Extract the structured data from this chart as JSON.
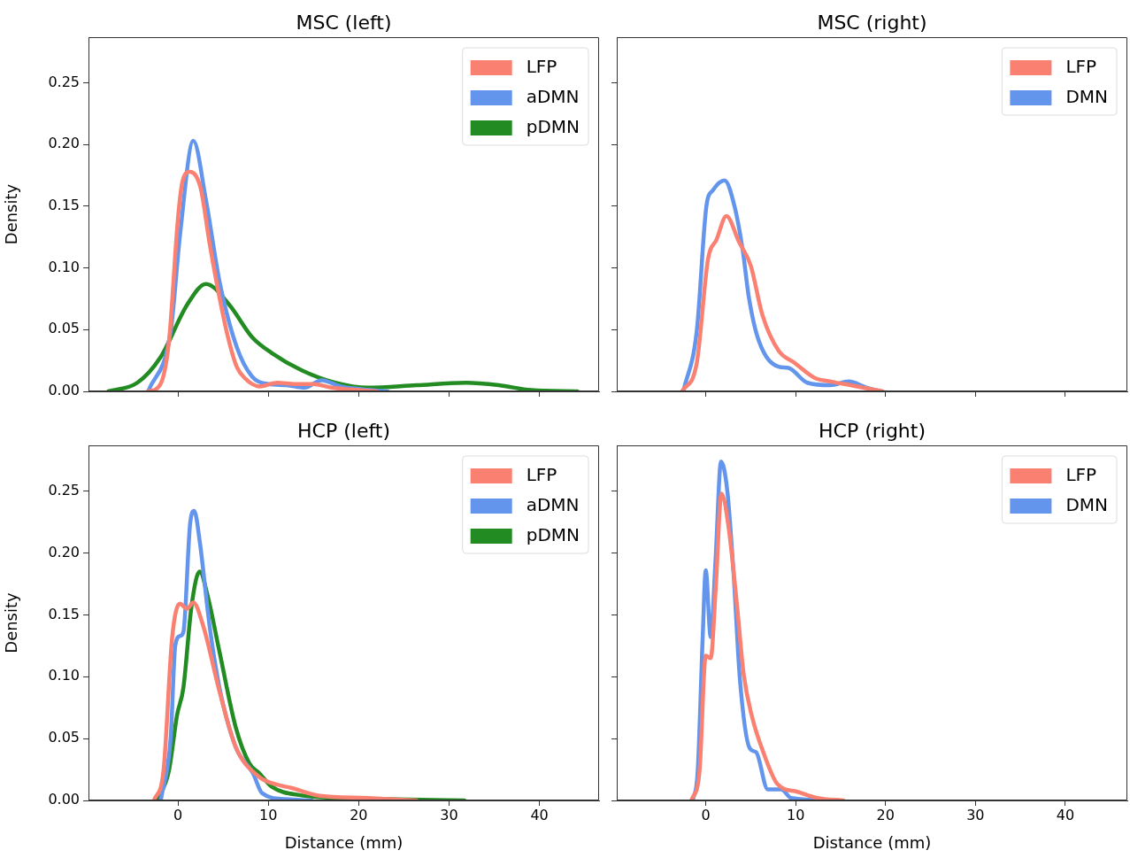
{
  "chart_data": [
    {
      "type": "line",
      "title": "MSC (left)",
      "ylabel": "Density",
      "xlim": [
        -9.9,
        46.6
      ],
      "ylim": [
        0,
        0.287
      ],
      "xticks": [
        {
          "value": 0,
          "label": null
        },
        {
          "value": 10,
          "label": null
        },
        {
          "value": 20,
          "label": null
        },
        {
          "value": 30,
          "label": null
        },
        {
          "value": 40,
          "label": null
        }
      ],
      "yticks": [
        {
          "value": 0,
          "label": "0.00"
        },
        {
          "value": 0.05,
          "label": "0.05"
        },
        {
          "value": 0.1,
          "label": "0.10"
        },
        {
          "value": 0.15,
          "label": "0.15"
        },
        {
          "value": 0.2,
          "label": "0.20"
        },
        {
          "value": 0.25,
          "label": "0.25"
        }
      ],
      "tick_labels": "y",
      "legend": "top right",
      "grid": false,
      "marker": "none",
      "line_style": "solid",
      "series": [
        {
          "name": "LFP",
          "color": "#fa8072",
          "x": [
            -3.3,
            -2,
            -1,
            0,
            0.5,
            1.3,
            2.5,
            3.5,
            4.6,
            5.5,
            6.5,
            7.5,
            8.2,
            9,
            11,
            13,
            15,
            17,
            20,
            22
          ],
          "values": [
            0,
            0.005,
            0.04,
            0.14,
            0.17,
            0.178,
            0.165,
            0.12,
            0.076,
            0.045,
            0.02,
            0.01,
            0.006,
            0.004,
            0.007,
            0.006,
            0.006,
            0.003,
            0.001,
            0
          ]
        },
        {
          "name": "aDMN",
          "color": "#6495ed",
          "x": [
            -3.3,
            -0.8,
            0.26,
            1.7,
            3.1,
            4.6,
            6.5,
            8.2,
            10,
            12,
            14,
            15.9,
            18,
            20,
            23.2
          ],
          "values": [
            0,
            0.049,
            0.129,
            0.203,
            0.155,
            0.089,
            0.036,
            0.012,
            0.006,
            0.005,
            0.003,
            0.009,
            0.004,
            0.002,
            0
          ]
        },
        {
          "name": "pDMN",
          "color": "#228b22",
          "x": [
            -7.7,
            -4.5,
            -1.9,
            1,
            3.1,
            5.7,
            8.2,
            10.4,
            13.7,
            17.4,
            21,
            26.4,
            31.9,
            35.5,
            39.1,
            44.2
          ],
          "values": [
            0,
            0.007,
            0.028,
            0.07,
            0.087,
            0.07,
            0.044,
            0.031,
            0.017,
            0.007,
            0.003,
            0.005,
            0.007,
            0.005,
            0.001,
            0
          ]
        }
      ]
    },
    {
      "type": "line",
      "title": "MSC (right)",
      "xlim": [
        -9.9,
        46.9
      ],
      "ylim": [
        0,
        0.287
      ],
      "xticks": [
        {
          "value": 0,
          "label": null
        },
        {
          "value": 10,
          "label": null
        },
        {
          "value": 20,
          "label": null
        },
        {
          "value": 30,
          "label": null
        },
        {
          "value": 40,
          "label": null
        }
      ],
      "yticks": [
        {
          "value": 0,
          "label": null
        },
        {
          "value": 0.05,
          "label": null
        },
        {
          "value": 0.1,
          "label": null
        },
        {
          "value": 0.15,
          "label": null
        },
        {
          "value": 0.2,
          "label": null
        },
        {
          "value": 0.25,
          "label": null
        }
      ],
      "tick_labels": false,
      "legend": "top right",
      "grid": false,
      "marker": "none",
      "line_style": "solid",
      "series": [
        {
          "name": "LFP",
          "color": "#fa8072",
          "x": [
            -2.65,
            -1,
            0.25,
            1.2,
            2.3,
            3.7,
            5,
            6.3,
            8.1,
            9.9,
            12.1,
            13.9,
            16.1,
            19.7
          ],
          "values": [
            0,
            0.023,
            0.107,
            0.123,
            0.142,
            0.121,
            0.102,
            0.062,
            0.033,
            0.023,
            0.011,
            0.008,
            0.005,
            0
          ]
        },
        {
          "name": "DMN",
          "color": "#6495ed",
          "x": [
            -2.5,
            -1,
            0.07,
            0.8,
            2.1,
            3.2,
            4.1,
            4.8,
            5.9,
            8.1,
            9.2,
            11.3,
            13.9,
            15.9,
            17.9,
            19.5
          ],
          "values": [
            0,
            0.049,
            0.15,
            0.163,
            0.171,
            0.15,
            0.115,
            0.076,
            0.041,
            0.02,
            0.019,
            0.007,
            0.005,
            0.008,
            0.003,
            0
          ]
        }
      ]
    },
    {
      "type": "line",
      "title": "HCP (left)",
      "xlabel": "Distance (mm)",
      "ylabel": "Density",
      "xlim": [
        -9.9,
        46.6
      ],
      "ylim": [
        0,
        0.287
      ],
      "xticks": [
        0,
        10,
        20,
        30,
        40
      ],
      "yticks": [
        {
          "value": 0,
          "label": "0.00"
        },
        {
          "value": 0.05,
          "label": "0.05"
        },
        {
          "value": 0.1,
          "label": "0.10"
        },
        {
          "value": 0.15,
          "label": "0.15"
        },
        {
          "value": 0.2,
          "label": "0.20"
        },
        {
          "value": 0.25,
          "label": "0.25"
        }
      ],
      "legend": "top right",
      "grid": false,
      "marker": "none",
      "line_style": "solid",
      "series": [
        {
          "name": "LFP",
          "color": "#fa8072",
          "x": [
            -2.65,
            -1.6,
            -0.65,
            0.2,
            1,
            1.7,
            2.8,
            4.6,
            6.4,
            9,
            10.4,
            12.6,
            15.5,
            21,
            26.4
          ],
          "values": [
            0,
            0.024,
            0.131,
            0.159,
            0.155,
            0.16,
            0.141,
            0.088,
            0.043,
            0.019,
            0.014,
            0.01,
            0.004,
            0.002,
            0
          ]
        },
        {
          "name": "aDMN",
          "color": "#6495ed",
          "x": [
            -1.9,
            -0.8,
            -0.3,
            0.25,
            0.6,
            1.35,
            1.8,
            2.4,
            3.5,
            4.6,
            6.4,
            8.3,
            9.3,
            11.9,
            14.8
          ],
          "values": [
            0,
            0.051,
            0.125,
            0.133,
            0.136,
            0.224,
            0.234,
            0.21,
            0.141,
            0.091,
            0.043,
            0.022,
            0.006,
            0.001,
            0
          ]
        },
        {
          "name": "pDMN",
          "color": "#228b22",
          "x": [
            -2.3,
            -1,
            -0.1,
            0.6,
            1.5,
            2.4,
            3.3,
            4.6,
            6.4,
            7.9,
            9,
            10.4,
            13.7,
            17.3,
            22.8,
            31.7
          ],
          "values": [
            0,
            0.024,
            0.069,
            0.091,
            0.157,
            0.185,
            0.165,
            0.12,
            0.059,
            0.03,
            0.022,
            0.011,
            0.004,
            0.002,
            0.001,
            0
          ]
        }
      ]
    },
    {
      "type": "line",
      "title": "HCP (right)",
      "xlabel": "Distance (mm)",
      "xlim": [
        -9.9,
        46.9
      ],
      "ylim": [
        0,
        0.287
      ],
      "xticks": [
        0,
        10,
        20,
        30,
        40
      ],
      "yticks": [
        {
          "value": 0,
          "label": null
        },
        {
          "value": 0.05,
          "label": null
        },
        {
          "value": 0.1,
          "label": null
        },
        {
          "value": 0.15,
          "label": null
        },
        {
          "value": 0.2,
          "label": null
        },
        {
          "value": 0.25,
          "label": null
        }
      ],
      "tick_labels": "x",
      "legend": "top right",
      "grid": false,
      "marker": "none",
      "line_style": "solid",
      "series": [
        {
          "name": "LFP",
          "color": "#fa8072",
          "x": [
            -1.6,
            -0.7,
            0,
            0.55,
            1.1,
            1.75,
            2.5,
            3.5,
            4.2,
            5.1,
            6.5,
            8,
            10.2,
            12.4,
            15.3
          ],
          "values": [
            0,
            0.023,
            0.117,
            0.115,
            0.17,
            0.248,
            0.223,
            0.156,
            0.103,
            0.069,
            0.037,
            0.013,
            0.007,
            0.002,
            0
          ]
        },
        {
          "name": "DMN",
          "color": "#6495ed",
          "x": [
            -1.45,
            -0.9,
            -0.35,
            0,
            0.55,
            1.1,
            1.7,
            2.4,
            3.1,
            3.8,
            4.9,
            5.6,
            6.9,
            8.4,
            9.5,
            14.2
          ],
          "values": [
            0,
            0.023,
            0.13,
            0.186,
            0.132,
            0.196,
            0.274,
            0.25,
            0.183,
            0.098,
            0.042,
            0.039,
            0.009,
            0.009,
            0.002,
            0
          ]
        }
      ]
    }
  ]
}
